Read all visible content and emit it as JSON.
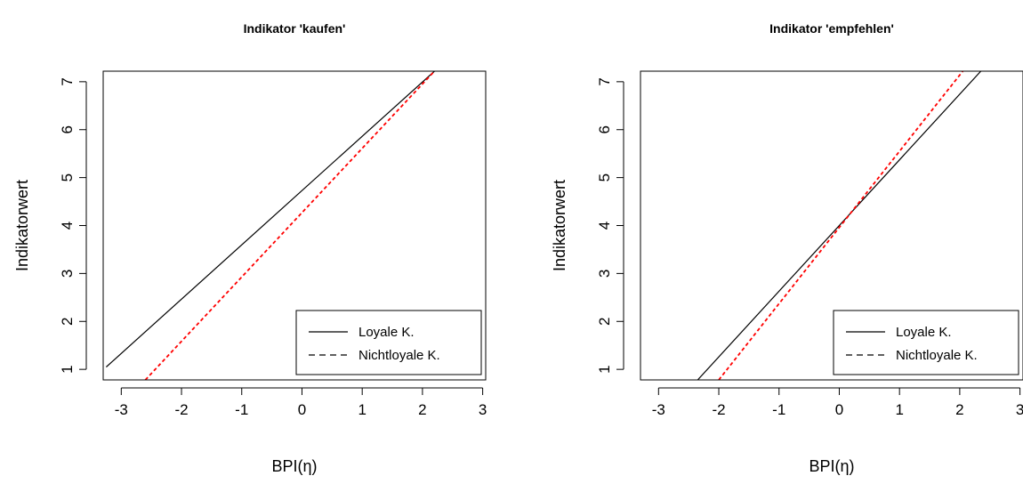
{
  "chart_data": [
    {
      "type": "line",
      "title": "Indikator 'kaufen'",
      "xlabel": "BPI(η)",
      "ylabel": "Indikatorwert",
      "xlim": [
        -3.3,
        3.05
      ],
      "ylim": [
        0.78,
        7.22
      ],
      "xticks": [
        -3,
        -2,
        -1,
        0,
        1,
        2,
        3
      ],
      "yticks": [
        1,
        2,
        3,
        4,
        5,
        6,
        7
      ],
      "xtick_labels": [
        "-3",
        "-2",
        "-1",
        "0",
        "1",
        "2",
        "3"
      ],
      "ytick_labels": [
        "1",
        "2",
        "3",
        "4",
        "5",
        "6",
        "7"
      ],
      "legend_position": "bottom-right",
      "series": [
        {
          "name": "Loyale K.",
          "style": "solid",
          "color": "#000000",
          "x": [
            -3.25,
            2.2
          ],
          "y": [
            1.05,
            7.22
          ]
        },
        {
          "name": "Nichtloyale K.",
          "style": "dashed",
          "color": "#ff0000",
          "x": [
            -2.6,
            2.2
          ],
          "y": [
            0.78,
            7.22
          ]
        }
      ]
    },
    {
      "type": "line",
      "title": "Indikator 'empfehlen'",
      "xlabel": "BPI(η)",
      "ylabel": "Indikatorwert",
      "xlim": [
        -3.3,
        3.05
      ],
      "ylim": [
        0.78,
        7.22
      ],
      "xticks": [
        -3,
        -2,
        -1,
        0,
        1,
        2,
        3
      ],
      "yticks": [
        1,
        2,
        3,
        4,
        5,
        6,
        7
      ],
      "xtick_labels": [
        "-3",
        "-2",
        "-1",
        "0",
        "1",
        "2",
        "3"
      ],
      "ytick_labels": [
        "1",
        "2",
        "3",
        "4",
        "5",
        "6",
        "7"
      ],
      "legend_position": "bottom-right",
      "series": [
        {
          "name": "Loyale K.",
          "style": "solid",
          "color": "#000000",
          "x": [
            -2.35,
            2.35
          ],
          "y": [
            0.78,
            7.22
          ]
        },
        {
          "name": "Nichtloyale K.",
          "style": "dashed",
          "color": "#ff0000",
          "x": [
            -2.0,
            2.05
          ],
          "y": [
            0.78,
            7.22
          ]
        }
      ]
    }
  ]
}
